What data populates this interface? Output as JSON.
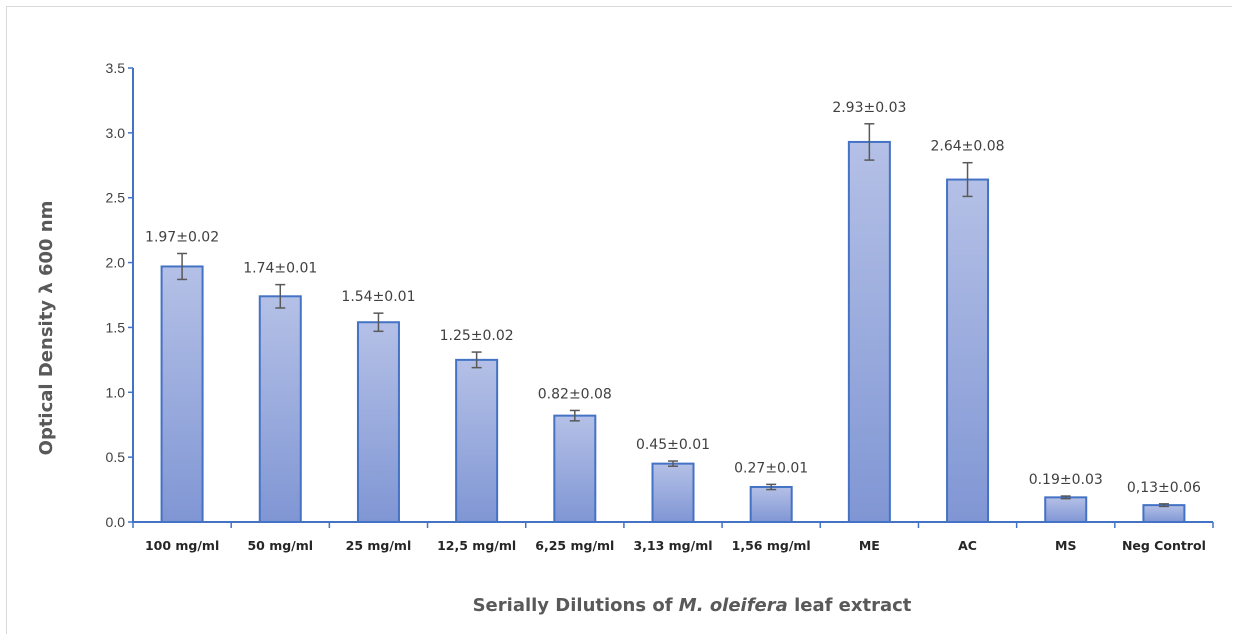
{
  "chart_data": {
    "type": "bar",
    "title": "",
    "ylabel": "Optical Density λ 600 nm",
    "xlabel": {
      "prefix": "Serially Dilutions of ",
      "italic": "M. oleifera",
      "suffix": " leaf extract"
    },
    "ylim": [
      0,
      3.5
    ],
    "yticks": [
      "0.0",
      "0.5",
      "1.0",
      "1.5",
      "2.0",
      "2.5",
      "3.0",
      "3.5"
    ],
    "categories": [
      "100 mg/ml",
      "50 mg/ml",
      "25 mg/ml",
      "12,5 mg/ml",
      "6,25 mg/ml",
      "3,13 mg/ml",
      "1,56 mg/ml",
      "ME",
      "AC",
      "MS",
      "Neg Control"
    ],
    "values": [
      1.97,
      1.74,
      1.54,
      1.25,
      0.82,
      0.45,
      0.27,
      2.93,
      2.64,
      0.19,
      0.13
    ],
    "errors": [
      0.1,
      0.09,
      0.07,
      0.06,
      0.04,
      0.02,
      0.02,
      0.14,
      0.13,
      0.01,
      0.01
    ],
    "data_labels": [
      "1.97±0.02",
      "1.74±0.01",
      "1.54±0.01",
      "1.25±0.02",
      "0.82±0.08",
      "0.45±0.01",
      "0.27±0.01",
      "2.93±0.03",
      "2.64±0.08",
      "0.19±0.03",
      "0,13±0.06"
    ],
    "colors": {
      "bar_fill_top": "#b4c0e6",
      "bar_fill_bottom": "#8096d4",
      "bar_border": "#4472c4",
      "axis": "#4472c4",
      "error_bar": "#595959"
    },
    "grid": false,
    "legend": "none"
  }
}
